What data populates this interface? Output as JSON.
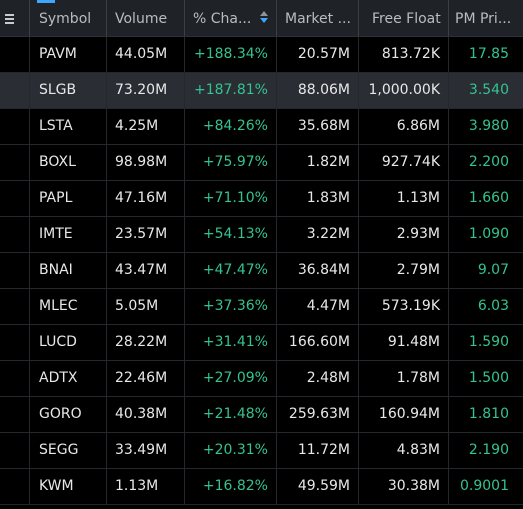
{
  "columns": {
    "symbol": "Symbol",
    "volume": "Volume",
    "change": "% Cha...",
    "market_cap": "Market ...",
    "free_float": "Free Float",
    "pm_price": "PM Pri..."
  },
  "sort": {
    "column": "% Change",
    "direction": "descending"
  },
  "colors": {
    "background": "#000000",
    "header_background": "#1f2227",
    "selected_row": "#2a2d33",
    "positive": "#34c38f",
    "accent": "#3ea6ff",
    "text": "#e8e8e8"
  },
  "selected_symbol": "SLGB",
  "rows": [
    {
      "symbol": "PAVM",
      "volume": "44.05M",
      "change": "+188.34%",
      "market_cap": "20.57M",
      "free_float": "813.72K",
      "pm_price": "17.85"
    },
    {
      "symbol": "SLGB",
      "volume": "73.20M",
      "change": "+187.81%",
      "market_cap": "88.06M",
      "free_float": "1,000.00K",
      "pm_price": "3.540"
    },
    {
      "symbol": "LSTA",
      "volume": "4.25M",
      "change": "+84.26%",
      "market_cap": "35.68M",
      "free_float": "6.86M",
      "pm_price": "3.980"
    },
    {
      "symbol": "BOXL",
      "volume": "98.98M",
      "change": "+75.97%",
      "market_cap": "1.82M",
      "free_float": "927.74K",
      "pm_price": "2.200"
    },
    {
      "symbol": "PAPL",
      "volume": "47.16M",
      "change": "+71.10%",
      "market_cap": "1.83M",
      "free_float": "1.13M",
      "pm_price": "1.660"
    },
    {
      "symbol": "IMTE",
      "volume": "23.57M",
      "change": "+54.13%",
      "market_cap": "3.22M",
      "free_float": "2.93M",
      "pm_price": "1.090"
    },
    {
      "symbol": "BNAI",
      "volume": "43.47M",
      "change": "+47.47%",
      "market_cap": "36.84M",
      "free_float": "2.79M",
      "pm_price": "9.07"
    },
    {
      "symbol": "MLEC",
      "volume": "5.05M",
      "change": "+37.36%",
      "market_cap": "4.47M",
      "free_float": "573.19K",
      "pm_price": "6.03"
    },
    {
      "symbol": "LUCD",
      "volume": "28.22M",
      "change": "+31.41%",
      "market_cap": "166.60M",
      "free_float": "91.48M",
      "pm_price": "1.590"
    },
    {
      "symbol": "ADTX",
      "volume": "22.46M",
      "change": "+27.09%",
      "market_cap": "2.48M",
      "free_float": "1.78M",
      "pm_price": "1.500"
    },
    {
      "symbol": "GORO",
      "volume": "40.38M",
      "change": "+21.48%",
      "market_cap": "259.63M",
      "free_float": "160.94M",
      "pm_price": "1.810"
    },
    {
      "symbol": "SEGG",
      "volume": "33.49M",
      "change": "+20.31%",
      "market_cap": "11.72M",
      "free_float": "4.83M",
      "pm_price": "2.190"
    },
    {
      "symbol": "KWM",
      "volume": "1.13M",
      "change": "+16.82%",
      "market_cap": "49.59M",
      "free_float": "30.38M",
      "pm_price": "0.9001"
    }
  ]
}
